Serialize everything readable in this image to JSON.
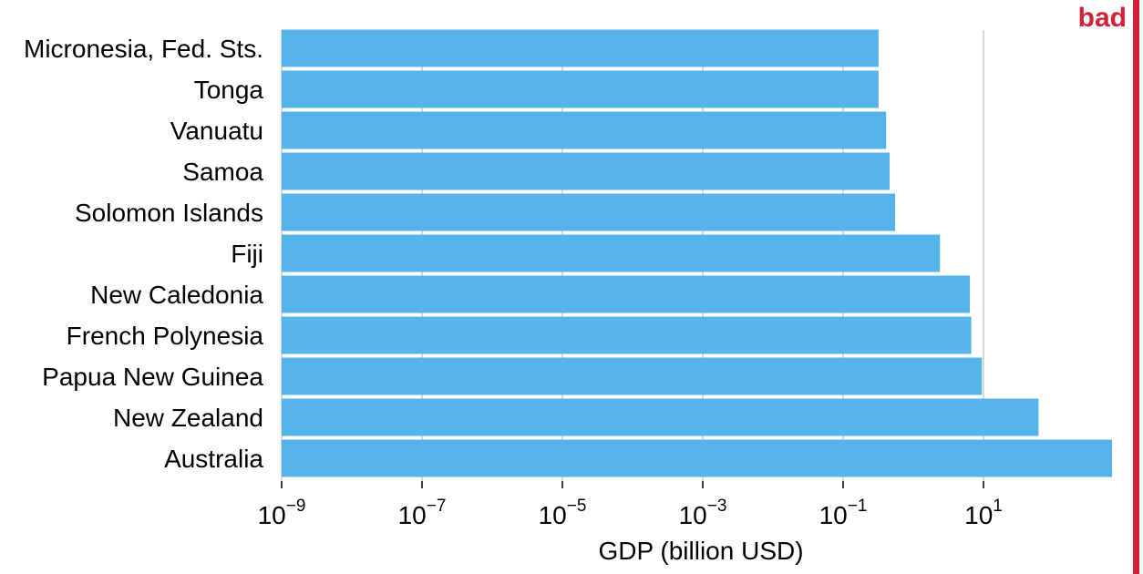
{
  "chart_data": {
    "type": "bar",
    "orientation": "horizontal",
    "categories": [
      "Micronesia, Fed. Sts.",
      "Tonga",
      "Vanuatu",
      "Samoa",
      "Solomon Islands",
      "Fiji",
      "New Caledonia",
      "French Polynesia",
      "Papua New Guinea",
      "New Zealand",
      "Australia"
    ],
    "values": [
      0.32,
      0.32,
      0.41,
      0.46,
      0.55,
      2.4,
      6.4,
      6.7,
      9.5,
      61,
      680
    ],
    "xlabel": "GDP (billion USD)",
    "ylabel": "",
    "xscale": "log",
    "xlim": [
      1e-09,
      1000
    ],
    "x_ticks": [
      {
        "base": "10",
        "exp": "−9",
        "value": 1e-09
      },
      {
        "base": "10",
        "exp": "−7",
        "value": 1e-07
      },
      {
        "base": "10",
        "exp": "−5",
        "value": 1e-05
      },
      {
        "base": "10",
        "exp": "−3",
        "value": 0.001
      },
      {
        "base": "10",
        "exp": "−1",
        "value": 0.1
      },
      {
        "base": "10",
        "exp": "1",
        "value": 10
      }
    ],
    "grid": "vertical gridlines at major ticks",
    "bar_color": "#56B4E9",
    "grid_color": "#d9d9d9"
  },
  "stamp": {
    "label": "bad",
    "color": "#D02138"
  }
}
